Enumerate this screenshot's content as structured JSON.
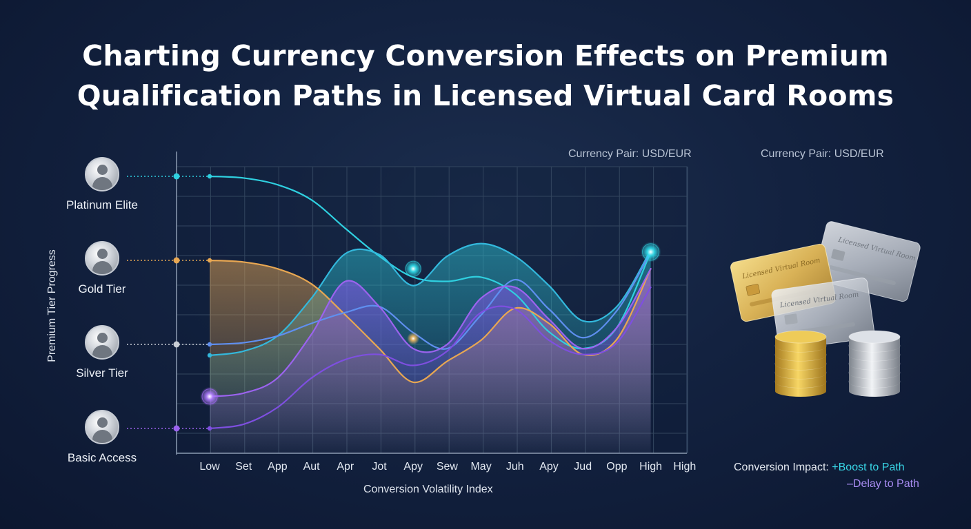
{
  "title_line1": "Charting Currency Conversion Effects on Premium",
  "title_line2": "Qualification Paths in Licensed Virtual Card Rooms",
  "chart_data": {
    "type": "line",
    "title": "Charting Currency Conversion Effects on Premium Qualification Paths in Licensed Virtual Card Rooms",
    "annotation": "Currency Pair: USD/EUR",
    "xlabel": "Conversion Volatility Index",
    "ylabel": "Premium Tier Progress",
    "categories": [
      "Low",
      "Set",
      "App",
      "Aut",
      "Apr",
      "Jot",
      "Apy",
      "Sew",
      "May",
      "Juh",
      "Apy",
      "Jud",
      "Opp",
      "High",
      "High"
    ],
    "tiers": [
      "Basic Access",
      "Silver Tier",
      "Gold Tier",
      "Platinum Elite"
    ],
    "ylim": [
      0,
      3
    ],
    "grid": true,
    "series": [
      {
        "color": "#2fd0e0",
        "values": [
          3.0,
          2.98,
          2.9,
          2.72,
          2.38,
          2.05,
          1.8,
          1.75,
          1.8,
          1.6,
          1.15,
          0.95,
          1.2,
          2.1,
          null
        ]
      },
      {
        "color": "#33b8dc",
        "values": [
          0.87,
          0.92,
          1.1,
          1.55,
          2.08,
          2.07,
          1.7,
          2.05,
          2.2,
          2.05,
          1.7,
          1.28,
          1.45,
          2.12,
          null
        ]
      },
      {
        "color": "#e8a752",
        "values": [
          2.0,
          1.98,
          1.9,
          1.72,
          1.35,
          0.95,
          0.55,
          0.8,
          1.05,
          1.43,
          1.25,
          0.88,
          1.06,
          1.9,
          null
        ]
      },
      {
        "color": "#5f8ff0",
        "values": [
          1.0,
          1.02,
          1.1,
          1.25,
          1.38,
          1.45,
          1.14,
          0.95,
          1.35,
          1.77,
          1.42,
          1.08,
          1.4,
          2.1,
          null
        ]
      },
      {
        "color": "#9b63ee",
        "values": [
          0.38,
          0.42,
          0.6,
          1.12,
          1.75,
          1.45,
          0.95,
          1.0,
          1.55,
          1.68,
          1.3,
          0.95,
          1.2,
          1.9,
          null
        ]
      },
      {
        "color": "#7e4fe0",
        "values": [
          0.0,
          0.05,
          0.25,
          0.6,
          0.82,
          0.88,
          0.75,
          0.92,
          1.38,
          1.42,
          1.05,
          0.88,
          1.02,
          1.68,
          null
        ]
      }
    ]
  },
  "legend": {
    "impact_label": "Conversion Impact: ",
    "boost": "+Boost to Path",
    "delay": "–Delay to Path"
  },
  "cards": {
    "text": "Licensed Virtual Room"
  },
  "colors": {
    "cyan": "#2fd0e0",
    "orange": "#e8a752",
    "purple": "#9b63ee",
    "gold": "#e4b441",
    "silver": "#c9ced6"
  }
}
